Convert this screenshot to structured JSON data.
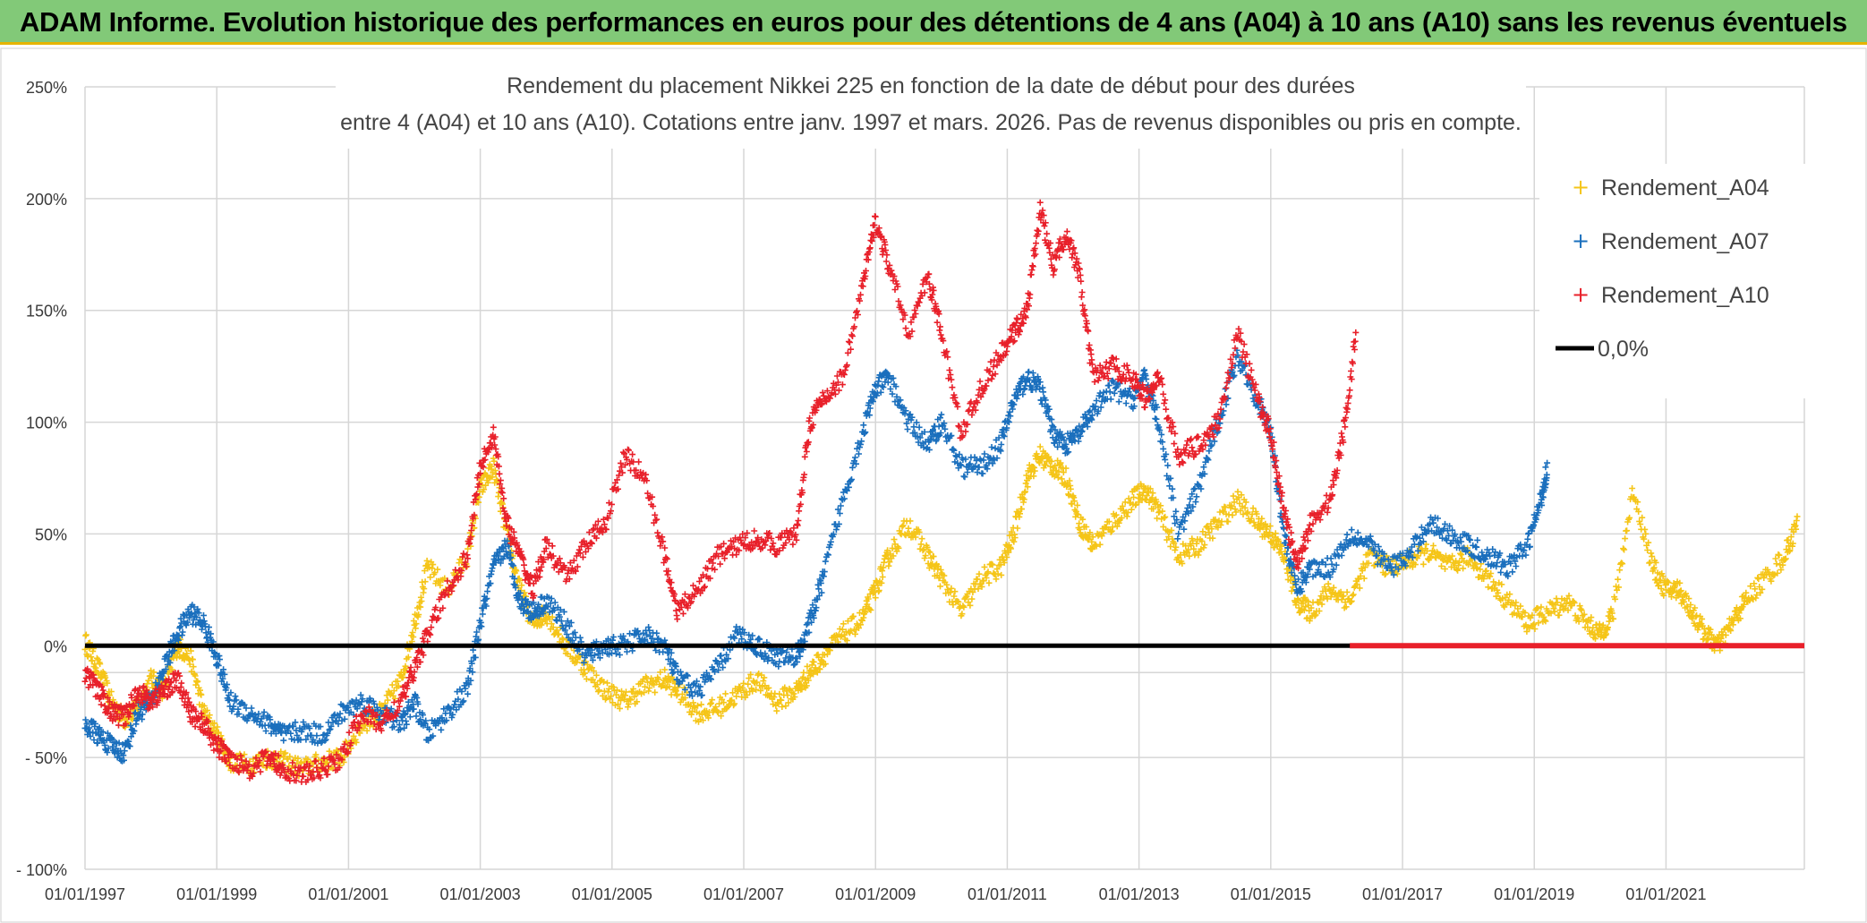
{
  "banner": {
    "title": "ADAM Informe. Evolution historique des performances en euros pour des détentions de 4 ans (A04) à 10 ans (A10) sans les revenus éventuels"
  },
  "colors": {
    "banner_bg": "#82c978",
    "banner_rule": "#e6b400",
    "a04": "#f5c518",
    "a07": "#1a6fbd",
    "a10": "#e8202a",
    "zero": "#000000",
    "grid": "#d6d6d6"
  },
  "chart_data": {
    "type": "scatter",
    "title_line1": "Rendement du placement Nikkei 225 en fonction de la date de début pour des durées",
    "title_line2": "entre 4 (A04) et 10 ans (A10). Cotations entre janv. 1997 et mars. 2026. Pas de revenus disponibles ou pris en compte.",
    "xlabel": "",
    "ylabel": "",
    "xlim": [
      1997.0,
      2023.1
    ],
    "ylim": [
      -100,
      250
    ],
    "y_ticks": [
      250,
      200,
      150,
      100,
      50,
      0,
      -50,
      -100
    ],
    "y_tick_labels": [
      "250%",
      "200%",
      "150%",
      "100%",
      "50%",
      "0%",
      "- 50%",
      "- 100%"
    ],
    "x_ticks": [
      1997,
      1999,
      2001,
      2003,
      2005,
      2007,
      2009,
      2011,
      2013,
      2015,
      2017,
      2019,
      2021
    ],
    "x_tick_labels": [
      "01/01/1997",
      "01/01/1999",
      "01/01/2001",
      "01/01/2003",
      "01/01/2005",
      "01/01/2007",
      "01/01/2009",
      "01/01/2011",
      "01/01/2013",
      "01/01/2015",
      "01/01/2017",
      "01/01/2019",
      "01/01/2021"
    ],
    "grid": true,
    "legend_position": "top-right",
    "legend": [
      "Rendement_A04",
      "Rendement_A07",
      "Rendement_A10",
      "0,0%"
    ],
    "series": [
      {
        "name": "Rendement_A04",
        "marker": "+",
        "x": [
          1997.0,
          1997.2,
          1997.4,
          1997.6,
          1997.8,
          1998.0,
          1998.2,
          1998.4,
          1998.6,
          1998.8,
          1999.0,
          1999.2,
          1999.5,
          1999.8,
          2000.0,
          2000.3,
          2000.6,
          2000.9,
          2001.2,
          2001.5,
          2001.8,
          2002.0,
          2002.2,
          2002.5,
          2002.8,
          2003.0,
          2003.2,
          2003.4,
          2003.6,
          2003.8,
          2004.0,
          2004.3,
          2004.6,
          2004.9,
          2005.2,
          2005.5,
          2005.8,
          2006.0,
          2006.3,
          2006.6,
          2006.9,
          2007.2,
          2007.5,
          2007.8,
          2008.0,
          2008.2,
          2008.5,
          2008.8,
          2009.0,
          2009.2,
          2009.5,
          2009.8,
          2010.0,
          2010.3,
          2010.6,
          2010.9,
          2011.1,
          2011.3,
          2011.5,
          2011.7,
          2011.9,
          2012.1,
          2012.3,
          2012.6,
          2012.9,
          2013.1,
          2013.3,
          2013.6,
          2013.9,
          2014.2,
          2014.5,
          2014.8,
          2015.0,
          2015.2,
          2015.4,
          2015.6,
          2015.9,
          2016.2,
          2016.5,
          2016.8,
          2017.1,
          2017.4,
          2017.7,
          2018.0,
          2018.3,
          2018.6,
          2018.9,
          2019.2,
          2019.5,
          2019.8,
          2020.0,
          2020.2,
          2020.5,
          2020.8,
          2021.0,
          2021.2,
          2021.4,
          2021.6,
          2021.8,
          2022.0,
          2022.2,
          2022.5,
          2022.8,
          2023.0
        ],
        "values": [
          2,
          -10,
          -25,
          -33,
          -28,
          -15,
          -20,
          0,
          -5,
          -30,
          -40,
          -52,
          -53,
          -50,
          -52,
          -55,
          -52,
          -50,
          -35,
          -30,
          -15,
          10,
          35,
          25,
          40,
          70,
          80,
          50,
          25,
          10,
          15,
          0,
          -10,
          -20,
          -25,
          -18,
          -15,
          -20,
          -30,
          -28,
          -22,
          -15,
          -25,
          -20,
          -12,
          -5,
          5,
          12,
          25,
          40,
          55,
          40,
          30,
          15,
          30,
          35,
          50,
          75,
          85,
          80,
          75,
          55,
          45,
          55,
          65,
          70,
          60,
          40,
          45,
          55,
          65,
          55,
          50,
          40,
          20,
          15,
          25,
          20,
          40,
          35,
          38,
          42,
          35,
          40,
          30,
          20,
          10,
          15,
          20,
          10,
          5,
          15,
          70,
          35,
          25,
          25,
          15,
          5,
          0,
          10,
          20,
          30,
          40,
          55
        ]
      },
      {
        "name": "Rendement_A07",
        "marker": "+",
        "x": [
          1997.0,
          1997.2,
          1997.4,
          1997.6,
          1997.8,
          1998.0,
          1998.2,
          1998.4,
          1998.6,
          1998.8,
          1999.0,
          1999.2,
          1999.5,
          1999.8,
          2000.0,
          2000.3,
          2000.6,
          2000.9,
          2001.2,
          2001.5,
          2001.8,
          2002.0,
          2002.2,
          2002.5,
          2002.8,
          2003.0,
          2003.2,
          2003.4,
          2003.6,
          2003.8,
          2004.0,
          2004.3,
          2004.6,
          2004.9,
          2005.2,
          2005.5,
          2005.8,
          2006.0,
          2006.3,
          2006.6,
          2006.9,
          2007.2,
          2007.5,
          2007.8,
          2008.0,
          2008.2,
          2008.5,
          2008.8,
          2009.0,
          2009.2,
          2009.5,
          2009.8,
          2010.0,
          2010.3,
          2010.6,
          2010.9,
          2011.1,
          2011.3,
          2011.5,
          2011.7,
          2011.9,
          2012.1,
          2012.3,
          2012.6,
          2012.9,
          2013.1,
          2013.3,
          2013.6,
          2013.9,
          2014.2,
          2014.5,
          2014.8,
          2015.0,
          2015.2,
          2015.4,
          2015.6,
          2015.9,
          2016.2,
          2016.5,
          2016.8,
          2017.1,
          2017.4,
          2017.7,
          2018.0,
          2018.3,
          2018.6,
          2018.9,
          2019.1,
          2019.2
        ],
        "values": [
          -35,
          -40,
          -45,
          -48,
          -30,
          -25,
          -10,
          5,
          15,
          10,
          -5,
          -25,
          -30,
          -35,
          -40,
          -38,
          -40,
          -30,
          -25,
          -30,
          -35,
          -25,
          -40,
          -30,
          -20,
          10,
          35,
          45,
          20,
          15,
          20,
          10,
          -5,
          0,
          0,
          5,
          0,
          -15,
          -20,
          -10,
          5,
          0,
          -5,
          -5,
          10,
          30,
          65,
          95,
          115,
          120,
          100,
          90,
          100,
          80,
          80,
          90,
          110,
          120,
          115,
          95,
          90,
          95,
          105,
          115,
          110,
          120,
          100,
          50,
          70,
          100,
          130,
          110,
          95,
          50,
          25,
          35,
          35,
          50,
          45,
          35,
          40,
          55,
          50,
          45,
          40,
          35,
          45,
          65,
          80
        ]
      },
      {
        "name": "Rendement_A10",
        "marker": "+",
        "x": [
          1997.0,
          1997.2,
          1997.4,
          1997.6,
          1997.8,
          1998.0,
          1998.2,
          1998.4,
          1998.6,
          1998.8,
          1999.0,
          1999.2,
          1999.5,
          1999.8,
          2000.0,
          2000.3,
          2000.6,
          2000.9,
          2001.2,
          2001.5,
          2001.8,
          2002.0,
          2002.2,
          2002.5,
          2002.8,
          2003.0,
          2003.2,
          2003.4,
          2003.6,
          2003.8,
          2004.0,
          2004.3,
          2004.6,
          2004.9,
          2005.2,
          2005.5,
          2005.8,
          2006.0,
          2006.3,
          2006.6,
          2006.9,
          2007.2,
          2007.5,
          2007.8,
          2008.0,
          2008.2,
          2008.5,
          2008.8,
          2009.0,
          2009.2,
          2009.5,
          2009.8,
          2010.0,
          2010.3,
          2010.6,
          2010.9,
          2011.1,
          2011.3,
          2011.5,
          2011.7,
          2011.9,
          2012.1,
          2012.3,
          2012.6,
          2012.9,
          2013.1,
          2013.3,
          2013.6,
          2013.9,
          2014.2,
          2014.5,
          2014.8,
          2015.0,
          2015.2,
          2015.4,
          2015.6,
          2015.9,
          2016.1,
          2016.3
        ],
        "values": [
          -12,
          -20,
          -30,
          -32,
          -20,
          -25,
          -20,
          -15,
          -30,
          -35,
          -45,
          -50,
          -55,
          -50,
          -55,
          -58,
          -55,
          -50,
          -30,
          -35,
          -25,
          -10,
          5,
          25,
          40,
          80,
          95,
          55,
          40,
          25,
          45,
          30,
          45,
          55,
          85,
          75,
          40,
          15,
          25,
          40,
          45,
          48,
          45,
          50,
          100,
          110,
          120,
          160,
          190,
          170,
          140,
          165,
          140,
          95,
          115,
          130,
          140,
          150,
          195,
          170,
          185,
          165,
          120,
          125,
          120,
          110,
          120,
          85,
          90,
          100,
          140,
          110,
          95,
          60,
          35,
          55,
          65,
          95,
          140
        ]
      },
      {
        "name": "0,0%",
        "type": "line",
        "x": [
          1997.0,
          2023.1
        ],
        "values": [
          0,
          0
        ]
      }
    ],
    "red_zero_segment": {
      "x": [
        2016.2,
        2023.1
      ],
      "values": [
        0,
        0
      ]
    }
  }
}
